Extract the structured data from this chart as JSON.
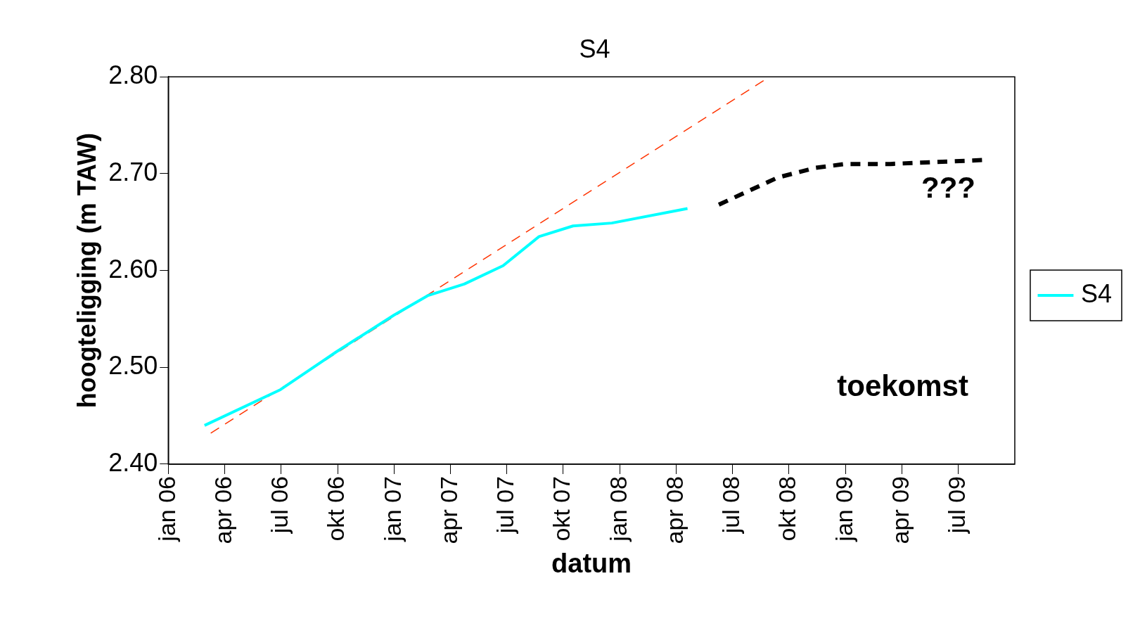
{
  "chart_data": {
    "type": "line",
    "title": "S4",
    "xlabel": "datum",
    "ylabel": "hoogteligging (m TAW)",
    "xlim": [
      "2006-01",
      "2009-10"
    ],
    "xticks": [
      {
        "value": "2006-01",
        "label": "jan 06"
      },
      {
        "value": "2006-04",
        "label": "apr 06"
      },
      {
        "value": "2006-07",
        "label": "jul 06"
      },
      {
        "value": "2006-10",
        "label": "okt 06"
      },
      {
        "value": "2007-01",
        "label": "jan 07"
      },
      {
        "value": "2007-04",
        "label": "apr 07"
      },
      {
        "value": "2007-07",
        "label": "jul 07"
      },
      {
        "value": "2007-10",
        "label": "okt 07"
      },
      {
        "value": "2008-01",
        "label": "jan 08"
      },
      {
        "value": "2008-04",
        "label": "apr 08"
      },
      {
        "value": "2008-07",
        "label": "jul 08"
      },
      {
        "value": "2008-10",
        "label": "okt 08"
      },
      {
        "value": "2009-01",
        "label": "jan 09"
      },
      {
        "value": "2009-04",
        "label": "apr 09"
      },
      {
        "value": "2009-07",
        "label": "jul 09"
      }
    ],
    "ylim": [
      2.4,
      2.8
    ],
    "yticks": [
      {
        "value": 2.4,
        "label": "2.40"
      },
      {
        "value": 2.5,
        "label": "2.50"
      },
      {
        "value": 2.6,
        "label": "2.60"
      },
      {
        "value": 2.7,
        "label": "2.70"
      },
      {
        "value": 2.8,
        "label": "2.80"
      }
    ],
    "grid": false,
    "legend": "right",
    "marker": "none",
    "series": [
      {
        "name": "S4",
        "color": "#00ffff",
        "line_style": "solid",
        "x": [
          "2006-02-27",
          "2006-06-30",
          "2006-09-29",
          "2007-01-01",
          "2007-02-23",
          "2007-04-23",
          "2007-06-25",
          "2007-08-23",
          "2007-10-17",
          "2007-12-19",
          "2008-04-19"
        ],
        "values": [
          2.44,
          2.477,
          2.516,
          2.554,
          2.574,
          2.586,
          2.605,
          2.635,
          2.646,
          2.649,
          2.664
        ]
      },
      {
        "color": "#ff3300",
        "line_style": "dashed",
        "x": [
          "2006-03-09",
          "2008-08-21"
        ],
        "values": [
          2.432,
          2.796
        ]
      },
      {
        "color": "#000000",
        "line_style": "dashed",
        "x": [
          "2008-06-09",
          "2008-09-13",
          "2008-11-13",
          "2009-01-01",
          "2009-03-13",
          "2009-05-25",
          "2009-08-09"
        ],
        "values": [
          2.668,
          2.696,
          2.706,
          2.71,
          2.71,
          2.712,
          2.714
        ]
      }
    ],
    "annotations": [
      "???",
      "toekomst"
    ]
  }
}
